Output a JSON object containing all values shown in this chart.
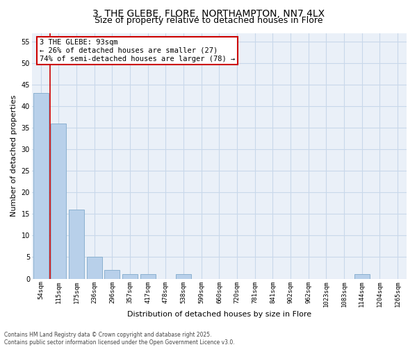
{
  "title1": "3, THE GLEBE, FLORE, NORTHAMPTON, NN7 4LX",
  "title2": "Size of property relative to detached houses in Flore",
  "categories": [
    "54sqm",
    "115sqm",
    "175sqm",
    "236sqm",
    "296sqm",
    "357sqm",
    "417sqm",
    "478sqm",
    "538sqm",
    "599sqm",
    "660sqm",
    "720sqm",
    "781sqm",
    "841sqm",
    "902sqm",
    "962sqm",
    "1023sqm",
    "1083sqm",
    "1144sqm",
    "1204sqm",
    "1265sqm"
  ],
  "values": [
    43,
    36,
    16,
    5,
    2,
    1,
    1,
    0,
    1,
    0,
    0,
    0,
    0,
    0,
    0,
    0,
    0,
    0,
    1,
    0,
    0
  ],
  "bar_color": "#b8d0ea",
  "bar_edge_color": "#8ab0d0",
  "vline_color": "#cc0000",
  "annotation_lines": [
    "3 THE GLEBE: 93sqm",
    "← 26% of detached houses are smaller (27)",
    "74% of semi-detached houses are larger (78) →"
  ],
  "annotation_box_color": "#cc0000",
  "ylabel": "Number of detached properties",
  "xlabel": "Distribution of detached houses by size in Flore",
  "ylim": [
    0,
    57
  ],
  "yticks": [
    0,
    5,
    10,
    15,
    20,
    25,
    30,
    35,
    40,
    45,
    50,
    55
  ],
  "grid_color": "#c8d8ea",
  "bg_color": "#eaf0f8",
  "footnote": "Contains HM Land Registry data © Crown copyright and database right 2025.\nContains public sector information licensed under the Open Government Licence v3.0.",
  "title_fontsize": 10,
  "subtitle_fontsize": 9,
  "tick_fontsize": 6.5,
  "label_fontsize": 8,
  "annot_fontsize": 7.5,
  "footnote_fontsize": 5.5
}
